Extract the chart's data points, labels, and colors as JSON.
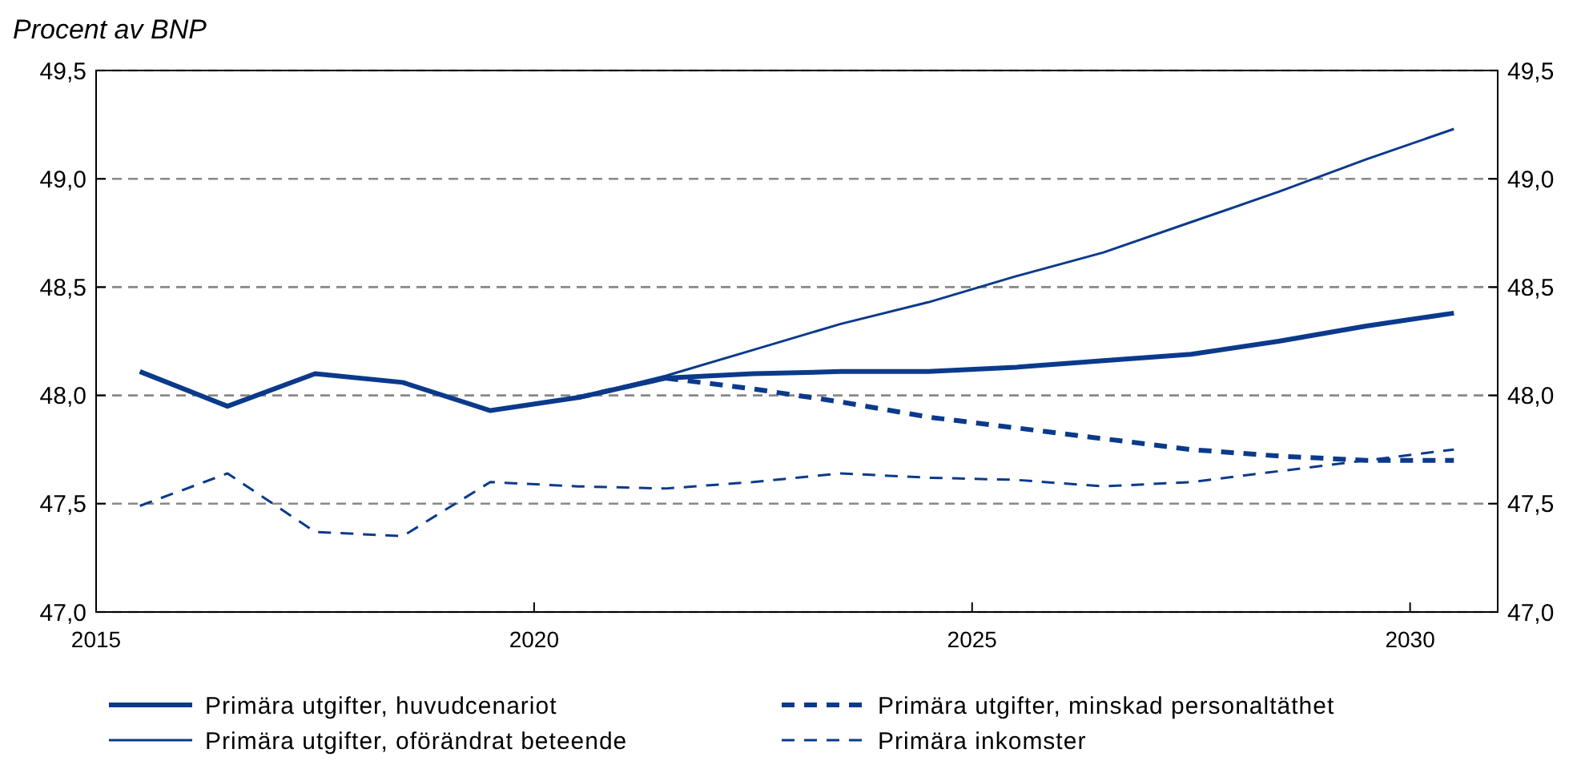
{
  "chart_data": {
    "type": "line",
    "title": "Procent av BNP",
    "x": [
      2015.5,
      2016.5,
      2017.5,
      2018.5,
      2019.5,
      2020.5,
      2021.5,
      2022.5,
      2023.5,
      2024.5,
      2025.5,
      2026.5,
      2027.5,
      2028.5,
      2029.5,
      2030.5
    ],
    "series": [
      {
        "name": "Primära utgifter, huvudcenariot",
        "color": "#0b3a8c",
        "line_style": "solid",
        "values": [
          48.11,
          47.95,
          48.1,
          48.06,
          47.93,
          47.99,
          48.08,
          48.1,
          48.11,
          48.11,
          48.13,
          48.16,
          48.19,
          48.25,
          48.32,
          48.38
        ]
      },
      {
        "name": "Primära utgifter, minskad personaltäthet",
        "color": "#0b3a8c",
        "line_style": "dashed",
        "values": [
          null,
          null,
          null,
          null,
          null,
          47.99,
          48.08,
          48.03,
          47.97,
          47.9,
          47.85,
          47.8,
          47.75,
          47.72,
          47.7,
          47.7
        ]
      },
      {
        "name": "Primära utgifter, oförändrat beteende",
        "color": "#0b3a8c",
        "line_style": "solid",
        "values": [
          48.11,
          47.95,
          48.1,
          48.06,
          47.93,
          47.99,
          48.09,
          48.21,
          48.33,
          48.43,
          48.55,
          48.66,
          48.8,
          48.94,
          49.09,
          49.23
        ]
      },
      {
        "name": "Primära inkomster",
        "color": "#0b3a8c",
        "line_style": "dashed",
        "values": [
          47.49,
          47.64,
          47.37,
          47.35,
          47.6,
          47.58,
          47.57,
          47.6,
          47.64,
          47.62,
          47.61,
          47.58,
          47.6,
          47.65,
          47.7,
          47.75
        ]
      }
    ],
    "xlim": [
      2015,
      2031
    ],
    "xticks": [
      2015,
      2020,
      2025,
      2030
    ],
    "ylim": [
      47.0,
      49.5
    ],
    "yticks": [
      {
        "value": 47.0,
        "label": "47,0"
      },
      {
        "value": 47.5,
        "label": "47,5"
      },
      {
        "value": 48.0,
        "label": "48,0"
      },
      {
        "value": 48.5,
        "label": "48,5"
      },
      {
        "value": 49.0,
        "label": "49,0"
      },
      {
        "value": 49.5,
        "label": "49,5"
      }
    ],
    "y2lim": [
      47.0,
      49.5
    ],
    "y2ticks": [
      {
        "value": 47.0,
        "label": "47,0"
      },
      {
        "value": 47.5,
        "label": "47,5"
      },
      {
        "value": 48.0,
        "label": "48,0"
      },
      {
        "value": 48.5,
        "label": "48,5"
      },
      {
        "value": 49.0,
        "label": "49,0"
      },
      {
        "value": 49.5,
        "label": "49,5"
      }
    ],
    "grid": "y",
    "legend": "bottom",
    "marker": "none"
  }
}
